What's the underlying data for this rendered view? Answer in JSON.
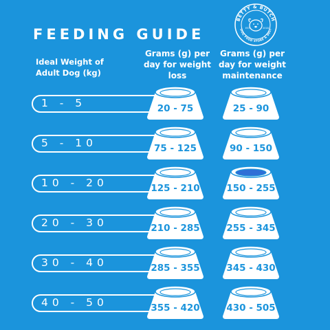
{
  "title": "FEEDING GUIDE",
  "headers": {
    "weight": "Ideal Weight of Adult Dog (kg)",
    "loss": "Grams (g) per day for weight loss",
    "maintenance": "Grams (g) per day for weight maintenance"
  },
  "logo": {
    "name": "BETTY & BUTCH",
    "tagline": "DOG FOOD STORE & DELI",
    "est": "EST.",
    "year": "2018"
  },
  "rows": [
    {
      "range": "1 - 5",
      "loss": "20 - 75",
      "maintenance": "25 - 90"
    },
    {
      "range": "5 - 10",
      "loss": "75 - 125",
      "maintenance": "90 - 150"
    },
    {
      "range": "10 - 20",
      "loss": "125 - 210",
      "maintenance": "150 - 255"
    },
    {
      "range": "20 - 30",
      "loss": "210 - 285",
      "maintenance": "255 - 345"
    },
    {
      "range": "30 - 40",
      "loss": "285 - 355",
      "maintenance": "345 - 430"
    },
    {
      "range": "40 - 50",
      "loss": "355 - 420",
      "maintenance": "430 - 505"
    }
  ],
  "colors": {
    "background": "#1b94dc",
    "food": "#2f6fd6",
    "white": "#ffffff"
  }
}
